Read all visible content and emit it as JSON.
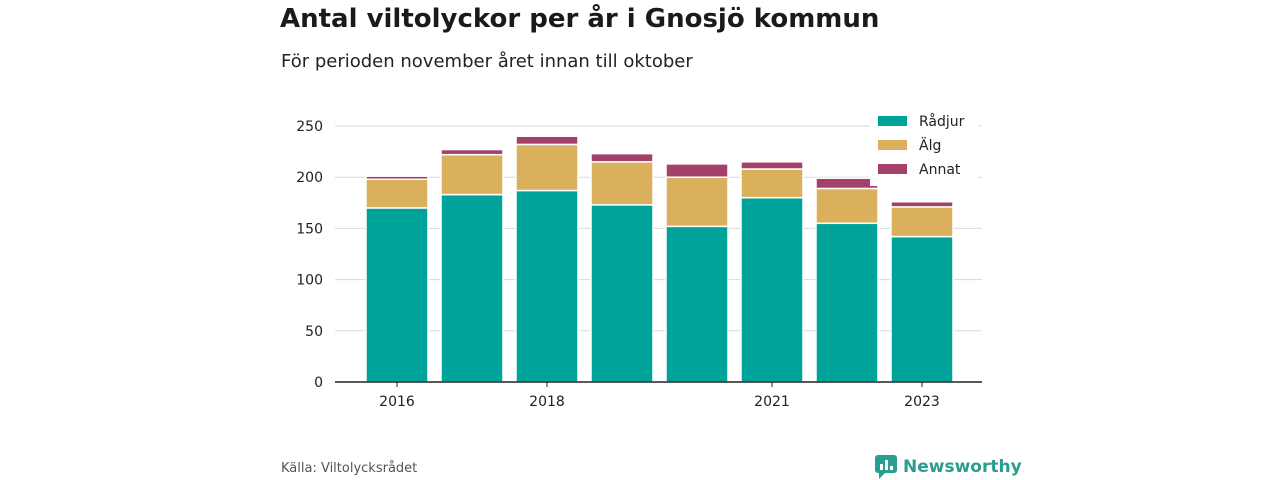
{
  "header": {
    "title": "Antal viltolyckor per år i Gnosjö kommun",
    "subtitle": "För perioden november året innan till oktober"
  },
  "footer": {
    "source": "Källa: Viltolycksrådet",
    "brand": "Newsworthy"
  },
  "colors": {
    "radjur": "#00a39a",
    "alg": "#dbb05c",
    "annat": "#a3416a",
    "brand": "#2a9d8f"
  },
  "chart_data": {
    "type": "bar",
    "stacked": true,
    "categories": [
      "2016",
      "2017",
      "2018",
      "2019",
      "2020",
      "2021",
      "2022",
      "2023"
    ],
    "tick_labels": [
      "2016",
      "",
      "2018",
      "",
      "",
      "2021",
      "",
      "2023"
    ],
    "series": [
      {
        "name": "Rådjur",
        "values": [
          170,
          183,
          187,
          173,
          152,
          180,
          155,
          142
        ]
      },
      {
        "name": "Älg",
        "values": [
          28,
          39,
          45,
          42,
          48,
          28,
          34,
          29
        ]
      },
      {
        "name": "Annat",
        "values": [
          3,
          5,
          8,
          8,
          13,
          7,
          10,
          5
        ]
      }
    ],
    "yticks": [
      0,
      50,
      100,
      150,
      200,
      250
    ],
    "ylim": [
      0,
      250
    ],
    "grid": true,
    "legend": "top-right"
  }
}
